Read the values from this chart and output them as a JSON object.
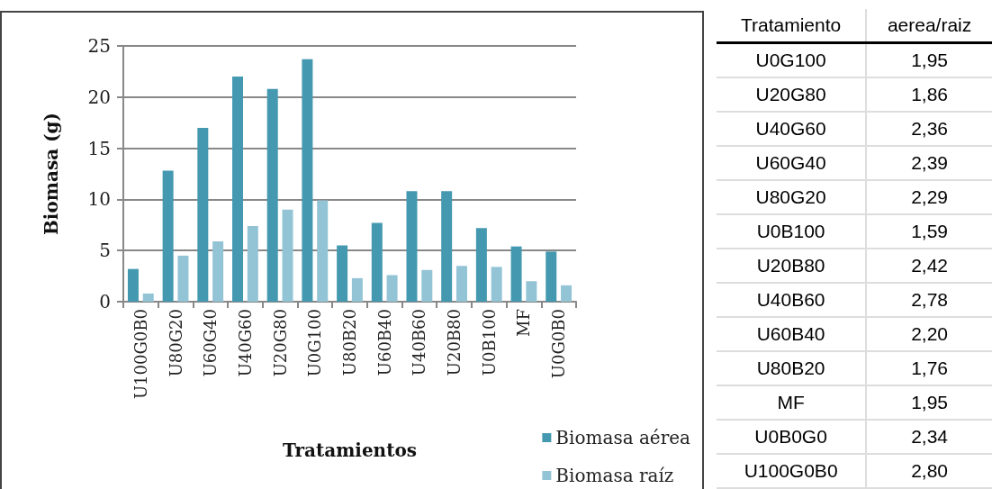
{
  "chart_data": [
    {
      "type": "bar",
      "xlabel": "Tratamientos",
      "ylabel": "Biomasa (g)",
      "categories": [
        "U100G0B0",
        "U80G20",
        "U60G40",
        "U40G60",
        "U20G80",
        "U0G100",
        "U80B20",
        "U60B40",
        "U40B60",
        "U20B80",
        "U0B100",
        "MF",
        "U0G0B0"
      ],
      "series": [
        {
          "name": "Biomasa aérea",
          "color": "#4499b0",
          "values": [
            3.2,
            12.8,
            17.0,
            22.0,
            20.8,
            23.7,
            5.5,
            7.7,
            10.8,
            10.8,
            7.2,
            5.4,
            4.9
          ]
        },
        {
          "name": "Biomasa raíz",
          "color": "#93c4d6",
          "values": [
            0.8,
            4.5,
            5.9,
            7.4,
            9.0,
            9.9,
            2.3,
            2.6,
            3.1,
            3.5,
            3.4,
            2.0,
            1.6
          ]
        }
      ],
      "ylim": [
        0,
        25
      ],
      "yticks": [
        0,
        5,
        10,
        15,
        20,
        25
      ],
      "grid": "y",
      "legend": "bottom right"
    },
    {
      "type": "other",
      "xlabel": "Tratamiento",
      "ylabel": "aerea/raiz",
      "categories": [
        "U0G100",
        "U20G80",
        "U40G60",
        "U60G40",
        "U80G20",
        "U0B100",
        "U20B80",
        "U40B60",
        "U60B40",
        "U80B20",
        "MF",
        "U0B0G0",
        "U100G0B0"
      ],
      "value_labels": [
        "1,95",
        "1,86",
        "2,36",
        "2,39",
        "2,29",
        "1,59",
        "2,42",
        "2,78",
        "2,20",
        "1,76",
        "1,95",
        "2,34",
        "2,80"
      ]
    }
  ]
}
